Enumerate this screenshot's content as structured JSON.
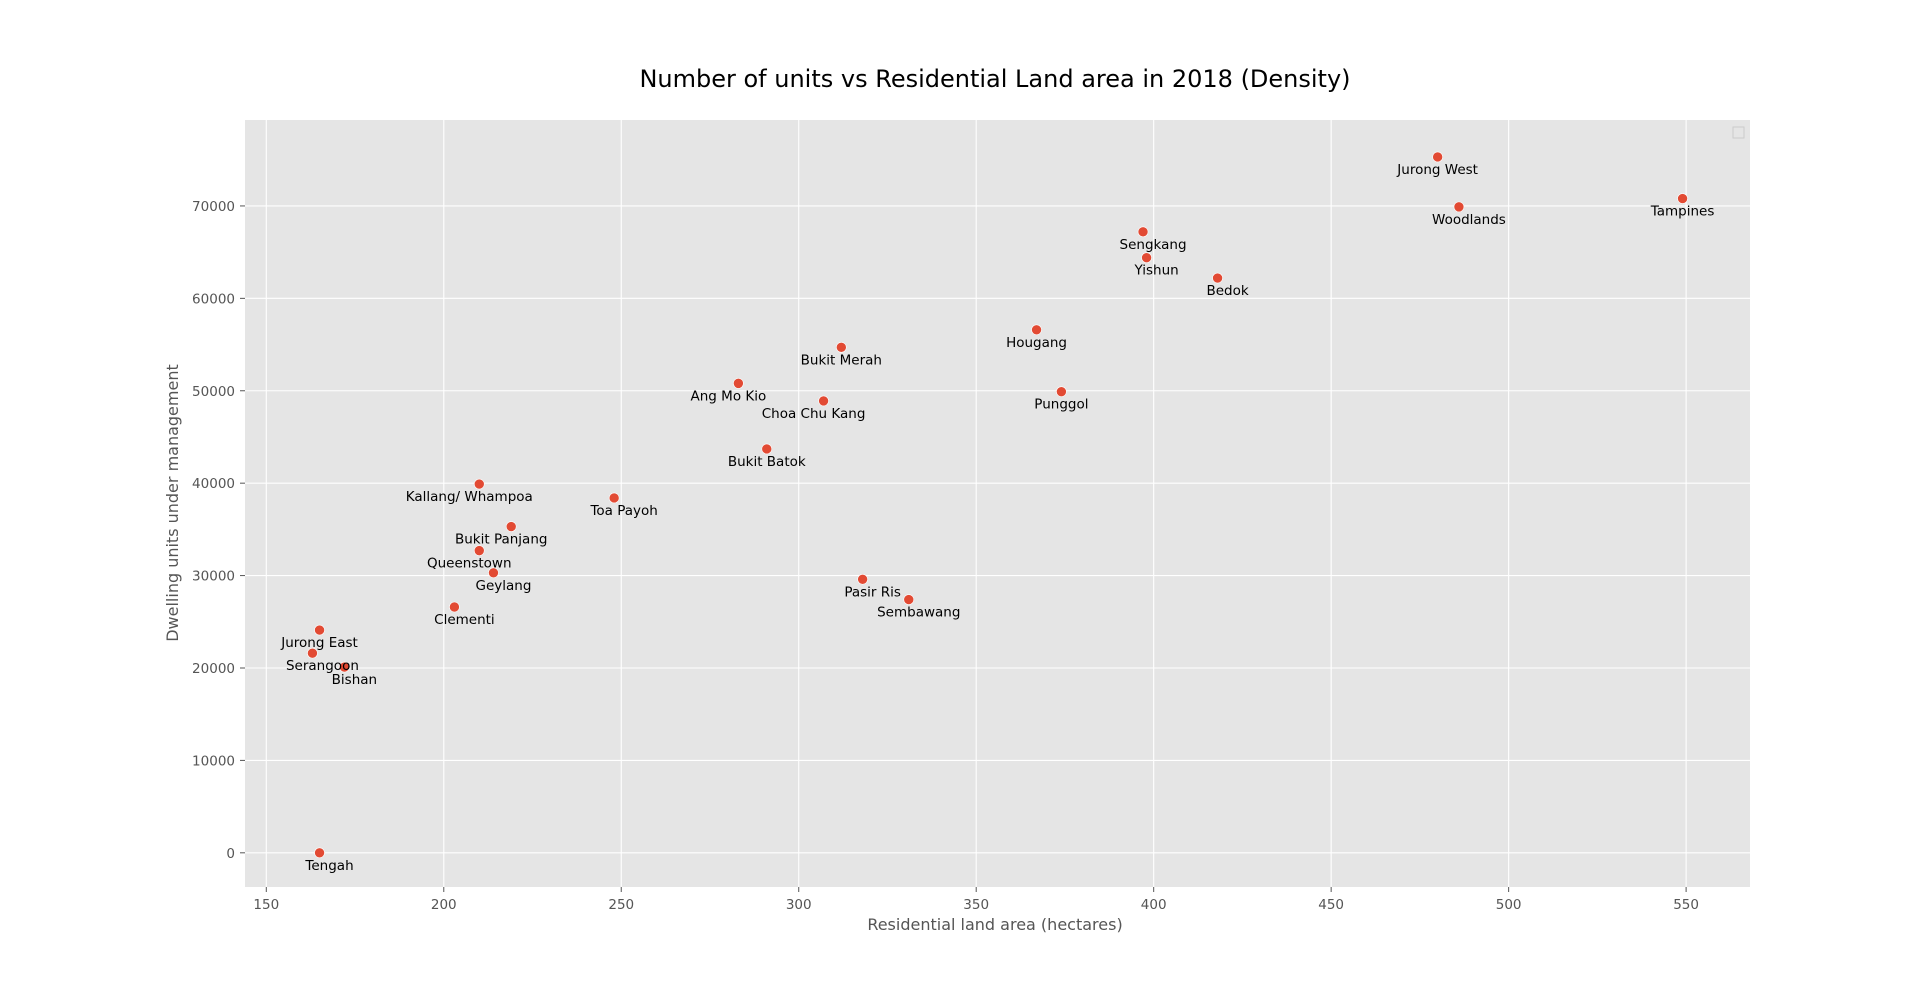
{
  "chart_data": {
    "type": "scatter",
    "title": "Number of units vs Residential Land area in 2018 (Density)",
    "xlabel": "Residential land area (hectares)",
    "ylabel": "Dwelling units under management",
    "xlim": [
      144,
      568
    ],
    "ylim": [
      -3700,
      79300
    ],
    "xticks": [
      150,
      200,
      250,
      300,
      350,
      400,
      450,
      500,
      550
    ],
    "yticks": [
      0,
      10000,
      20000,
      30000,
      40000,
      50000,
      60000,
      70000
    ],
    "grid": true,
    "legend": "top-right (empty)",
    "colors": {
      "background": "#e5e5e5",
      "grid": "#ffffff",
      "marker": "#e24a33",
      "tick_text": "#555555",
      "title_text": "#000000"
    },
    "points": [
      {
        "label": "Jurong West",
        "x": 480,
        "y": 75300,
        "label_pos": "below"
      },
      {
        "label": "Woodlands",
        "x": 486,
        "y": 69900,
        "label_pos": "below-right"
      },
      {
        "label": "Tampines",
        "x": 549,
        "y": 70800,
        "label_pos": "below"
      },
      {
        "label": "Sengkang",
        "x": 397,
        "y": 67200,
        "label_pos": "below-right"
      },
      {
        "label": "Yishun",
        "x": 398,
        "y": 64400,
        "label_pos": "below-right"
      },
      {
        "label": "Bedok",
        "x": 418,
        "y": 62200,
        "label_pos": "below-right"
      },
      {
        "label": "Hougang",
        "x": 367,
        "y": 56600,
        "label_pos": "below"
      },
      {
        "label": "Punggol",
        "x": 374,
        "y": 49900,
        "label_pos": "below"
      },
      {
        "label": "Bukit Merah",
        "x": 312,
        "y": 54700,
        "label_pos": "below"
      },
      {
        "label": "Ang Mo Kio",
        "x": 283,
        "y": 50800,
        "label_pos": "below-left"
      },
      {
        "label": "Choa Chu Kang",
        "x": 307,
        "y": 48900,
        "label_pos": "below-left"
      },
      {
        "label": "Bukit Batok",
        "x": 291,
        "y": 43700,
        "label_pos": "below"
      },
      {
        "label": "Kallang/ Whampoa",
        "x": 210,
        "y": 39900,
        "label_pos": "below-left"
      },
      {
        "label": "Toa Payoh",
        "x": 248,
        "y": 38400,
        "label_pos": "below-right"
      },
      {
        "label": "Bukit Panjang",
        "x": 219,
        "y": 35300,
        "label_pos": "below-left"
      },
      {
        "label": "Queenstown",
        "x": 210,
        "y": 32700,
        "label_pos": "below-left"
      },
      {
        "label": "Geylang",
        "x": 214,
        "y": 30300,
        "label_pos": "below-right"
      },
      {
        "label": "Clementi",
        "x": 203,
        "y": 26600,
        "label_pos": "below-right"
      },
      {
        "label": "Pasir Ris",
        "x": 318,
        "y": 29600,
        "label_pos": "below-right"
      },
      {
        "label": "Sembawang",
        "x": 331,
        "y": 27400,
        "label_pos": "below-right"
      },
      {
        "label": "Jurong East",
        "x": 165,
        "y": 24100,
        "label_pos": "below"
      },
      {
        "label": "Serangoon",
        "x": 163,
        "y": 21600,
        "label_pos": "below-right"
      },
      {
        "label": "Bishan",
        "x": 172,
        "y": 20100,
        "label_pos": "below-right"
      },
      {
        "label": "Tengah",
        "x": 165,
        "y": 0,
        "label_pos": "below-right"
      }
    ]
  }
}
